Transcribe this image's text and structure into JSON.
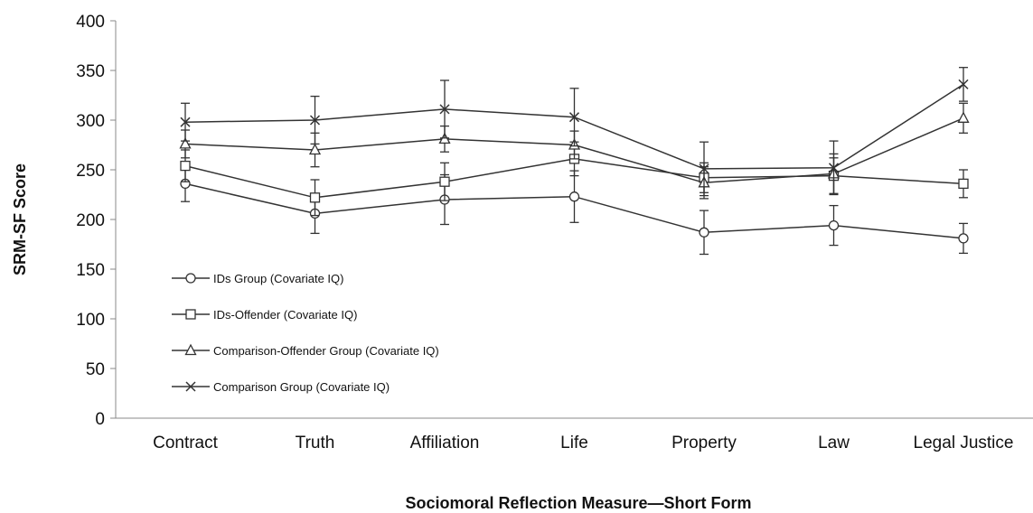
{
  "chart_data": {
    "type": "line",
    "title": "",
    "xlabel": "Sociomoral Reflection Measure—Short Form",
    "ylabel": "SRM-SF Score",
    "ylim": [
      0,
      400
    ],
    "yticks": [
      0,
      50,
      100,
      150,
      200,
      250,
      300,
      350,
      400
    ],
    "categories": [
      "Contract",
      "Truth",
      "Affiliation",
      "Life",
      "Property",
      "Law",
      "Legal Justice"
    ],
    "grid": false,
    "legend_position": "lower-left",
    "series": [
      {
        "name": "IDs Group (Covariate IQ)",
        "marker": "circle",
        "values": [
          236,
          206,
          220,
          223,
          187,
          194,
          181
        ],
        "error": [
          18,
          20,
          25,
          26,
          22,
          20,
          15
        ]
      },
      {
        "name": "IDs-Offender (Covariate IQ)",
        "marker": "square",
        "values": [
          254,
          222,
          238,
          261,
          242,
          244,
          236
        ],
        "error": [
          16,
          18,
          19,
          17,
          15,
          18,
          14
        ]
      },
      {
        "name": "Comparison-Offender Group (Covariate IQ)",
        "marker": "triangle",
        "values": [
          276,
          270,
          281,
          275,
          237,
          246,
          302
        ],
        "error": [
          14,
          17,
          13,
          14,
          16,
          20,
          15
        ]
      },
      {
        "name": "Comparison Group (Covariate IQ)",
        "marker": "x",
        "values": [
          298,
          300,
          311,
          303,
          251,
          252,
          336
        ],
        "error": [
          19,
          24,
          29,
          29,
          27,
          27,
          17
        ]
      }
    ]
  }
}
